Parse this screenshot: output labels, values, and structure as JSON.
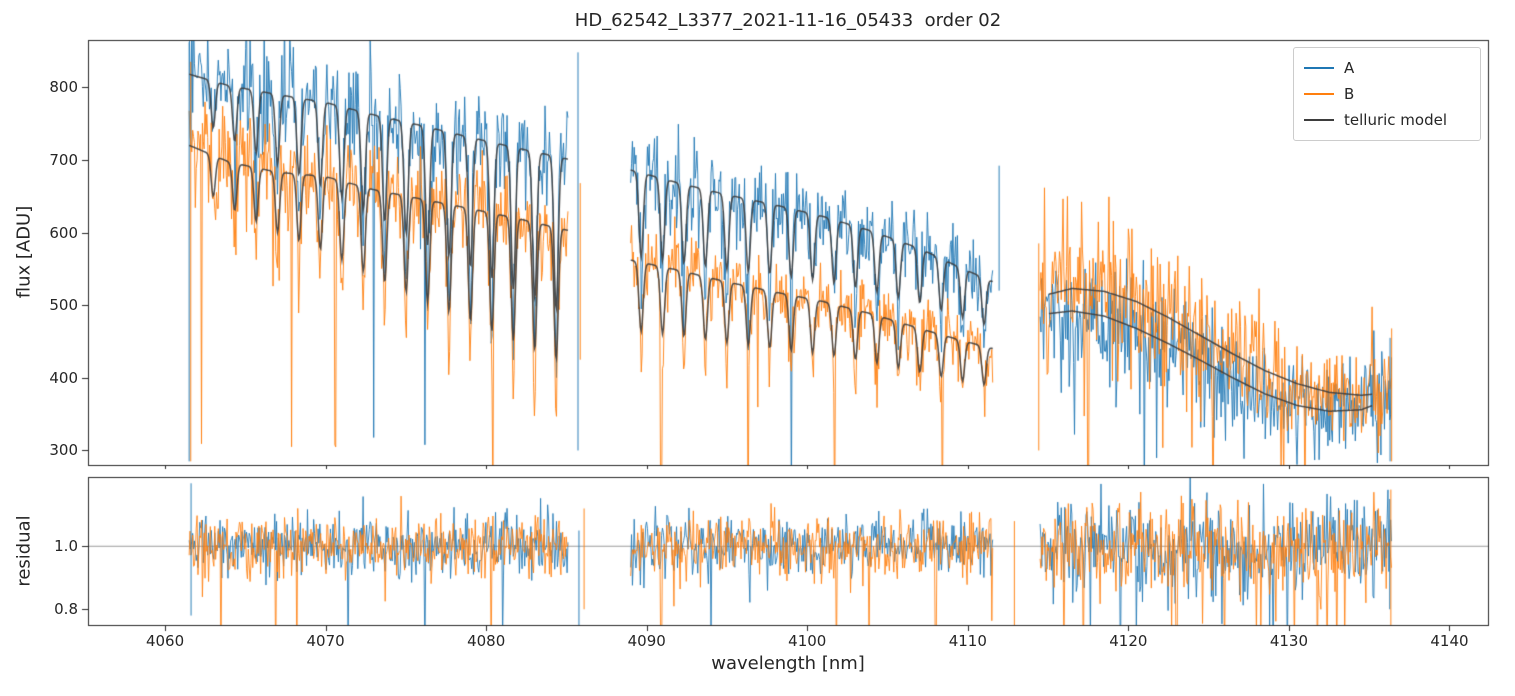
{
  "chart_data": {
    "type": "line",
    "title": "HD_62542_L3377_2021-11-16_05433  order 02",
    "xlabel": "wavelength [nm]",
    "xlim": [
      4055.2,
      4142.4
    ],
    "xticks": [
      4060,
      4070,
      4080,
      4090,
      4100,
      4110,
      4120,
      4130,
      4140
    ],
    "panels": [
      {
        "name": "flux",
        "ylabel": "flux [ADU]",
        "ylim": [
          280,
          865
        ],
        "yticks": [
          300,
          400,
          500,
          600,
          700,
          800
        ]
      },
      {
        "name": "residual",
        "ylabel": "residual",
        "ylim": [
          0.75,
          1.22
        ],
        "yticks": [
          0.8,
          1.0
        ],
        "refline": 1.0
      }
    ],
    "legend": [
      {
        "label": "A",
        "color": "#1f77b4"
      },
      {
        "label": "B",
        "color": "#ff7f0e"
      },
      {
        "label": "telluric model",
        "color": "#3d3d3d"
      }
    ],
    "series_colors": {
      "A": "#1f77b4",
      "B": "#ff7f0e",
      "model": "#3d3d3d"
    },
    "segments": [
      {
        "x_range": [
          4061.5,
          4085.1
        ],
        "continuum_A": [
          [
            4061.5,
            818
          ],
          [
            4064,
            802
          ],
          [
            4067,
            790
          ],
          [
            4070,
            779
          ],
          [
            4073,
            762
          ],
          [
            4076,
            747
          ],
          [
            4079,
            731
          ],
          [
            4082,
            716
          ],
          [
            4085.1,
            701
          ]
        ],
        "continuum_B": [
          [
            4061.5,
            720
          ],
          [
            4064,
            697
          ],
          [
            4067,
            683
          ],
          [
            4070,
            677
          ],
          [
            4073,
            659
          ],
          [
            4076,
            646
          ],
          [
            4079,
            633
          ],
          [
            4082,
            619
          ],
          [
            4085.1,
            603
          ]
        ],
        "noise_sigma": 0.05,
        "residual_sigma": 0.048,
        "dips": {
          "start": 4063.0,
          "spacing": 1.335,
          "count": 17,
          "depth_start": 0.08,
          "depth_end": 0.3,
          "width": 0.13
        }
      },
      {
        "x_range": [
          4089.0,
          4111.6
        ],
        "continuum_A": [
          [
            4089,
            686
          ],
          [
            4092,
            668
          ],
          [
            4095,
            652
          ],
          [
            4098,
            638
          ],
          [
            4101,
            622
          ],
          [
            4104,
            602
          ],
          [
            4107,
            578
          ],
          [
            4109.5,
            552
          ],
          [
            4111.6,
            532
          ]
        ],
        "continuum_B": [
          [
            4089,
            562
          ],
          [
            4092,
            548
          ],
          [
            4095,
            532
          ],
          [
            4098,
            518
          ],
          [
            4101,
            505
          ],
          [
            4104,
            488
          ],
          [
            4107,
            468
          ],
          [
            4109.5,
            452
          ],
          [
            4111.6,
            440
          ]
        ],
        "noise_sigma": 0.05,
        "residual_sigma": 0.05,
        "dips": {
          "start": 4089.65,
          "spacing": 1.335,
          "count": 17,
          "depth_start": 0.17,
          "depth_end": 0.12,
          "width": 0.13
        }
      },
      {
        "x_range": [
          4114.5,
          4136.4
        ],
        "model_x_start": 4115.0,
        "model_x_end": 4135.2,
        "continuum_A": [
          [
            4114.5,
            487
          ],
          [
            4116.5,
            492
          ],
          [
            4118.5,
            485
          ],
          [
            4120.5,
            468
          ],
          [
            4122.5,
            447
          ],
          [
            4124.5,
            424
          ],
          [
            4126.5,
            400
          ],
          [
            4128.5,
            378
          ],
          [
            4130.5,
            362
          ],
          [
            4132.5,
            354
          ],
          [
            4134.5,
            356
          ],
          [
            4136.4,
            372
          ]
        ],
        "continuum_B": [
          [
            4114.5,
            512
          ],
          [
            4116.5,
            523
          ],
          [
            4118.5,
            519
          ],
          [
            4120.5,
            505
          ],
          [
            4122.5,
            483
          ],
          [
            4124.5,
            458
          ],
          [
            4126.5,
            433
          ],
          [
            4128.5,
            410
          ],
          [
            4130.5,
            392
          ],
          [
            4132.5,
            380
          ],
          [
            4134.5,
            376
          ],
          [
            4136.4,
            380
          ]
        ],
        "noise_sigma": 0.1,
        "residual_sigma": 0.075,
        "dips": null
      }
    ],
    "edge_spikes_flux": [
      {
        "x": 4061.5,
        "series": "A",
        "y": [
          285,
          862
        ]
      },
      {
        "x": 4061.6,
        "series": "B",
        "y": [
          285,
          835
        ]
      },
      {
        "x": 4085.72,
        "series": "A",
        "y": [
          300,
          848
        ]
      },
      {
        "x": 4085.86,
        "series": "B",
        "y": [
          425,
          668
        ]
      },
      {
        "x": 4111.95,
        "series": "A",
        "y": [
          520,
          692
        ]
      },
      {
        "x": 4114.42,
        "series": "B",
        "y": [
          300,
          585
        ]
      },
      {
        "x": 4136.3,
        "series": "A",
        "y": [
          285,
          455
        ]
      },
      {
        "x": 4136.4,
        "series": "B",
        "y": [
          285,
          468
        ]
      }
    ],
    "edge_spikes_residual": [
      {
        "x": 4061.62,
        "series": "A",
        "y": [
          0.78,
          1.2
        ]
      },
      {
        "x": 4085.78,
        "series": "A",
        "y": [
          0.62,
          1.05
        ]
      },
      {
        "x": 4086.1,
        "series": "B",
        "y": [
          0.8,
          1.12
        ]
      },
      {
        "x": 4112.9,
        "series": "B",
        "y": [
          0.7,
          1.08
        ]
      },
      {
        "x": 4136.28,
        "series": "A",
        "y": [
          0.8,
          1.15
        ]
      },
      {
        "x": 4136.35,
        "series": "B",
        "y": [
          0.75,
          1.18
        ]
      }
    ],
    "deep_lines_flux": [
      {
        "x": 4062.25,
        "s": "B"
      },
      {
        "x": 4067.9,
        "s": "B"
      },
      {
        "x": 4070.6,
        "s": "B"
      },
      {
        "x": 4073.0,
        "s": "A"
      },
      {
        "x": 4076.2,
        "s": "A"
      },
      {
        "x": 4080.4,
        "s": "B"
      },
      {
        "x": 4090.9,
        "s": "B"
      },
      {
        "x": 4096.3,
        "s": "B"
      },
      {
        "x": 4099.0,
        "s": "A"
      },
      {
        "x": 4101.7,
        "s": "B"
      },
      {
        "x": 4108.4,
        "s": "B"
      },
      {
        "x": 4117.5,
        "s": "B"
      },
      {
        "x": 4121.0,
        "s": "A"
      },
      {
        "x": 4125.3,
        "s": "B"
      },
      {
        "x": 4131.0,
        "s": "B"
      }
    ],
    "deep_lines_residual": [
      {
        "x": 4063.5,
        "s": "B"
      },
      {
        "x": 4066.9,
        "s": "B"
      },
      {
        "x": 4068.2,
        "s": "B"
      },
      {
        "x": 4071.4,
        "s": "A"
      },
      {
        "x": 4076.2,
        "s": "A"
      },
      {
        "x": 4080.3,
        "s": "B"
      },
      {
        "x": 4090.9,
        "s": "B"
      },
      {
        "x": 4094.0,
        "s": "A"
      },
      {
        "x": 4101.8,
        "s": "B"
      },
      {
        "x": 4108.0,
        "s": "B"
      },
      {
        "x": 4116.0,
        "s": "B"
      },
      {
        "x": 4119.5,
        "s": "A"
      },
      {
        "x": 4123.0,
        "s": "B"
      },
      {
        "x": 4126.0,
        "s": "B"
      },
      {
        "x": 4129.0,
        "s": "A"
      },
      {
        "x": 4133.0,
        "s": "B"
      }
    ]
  }
}
